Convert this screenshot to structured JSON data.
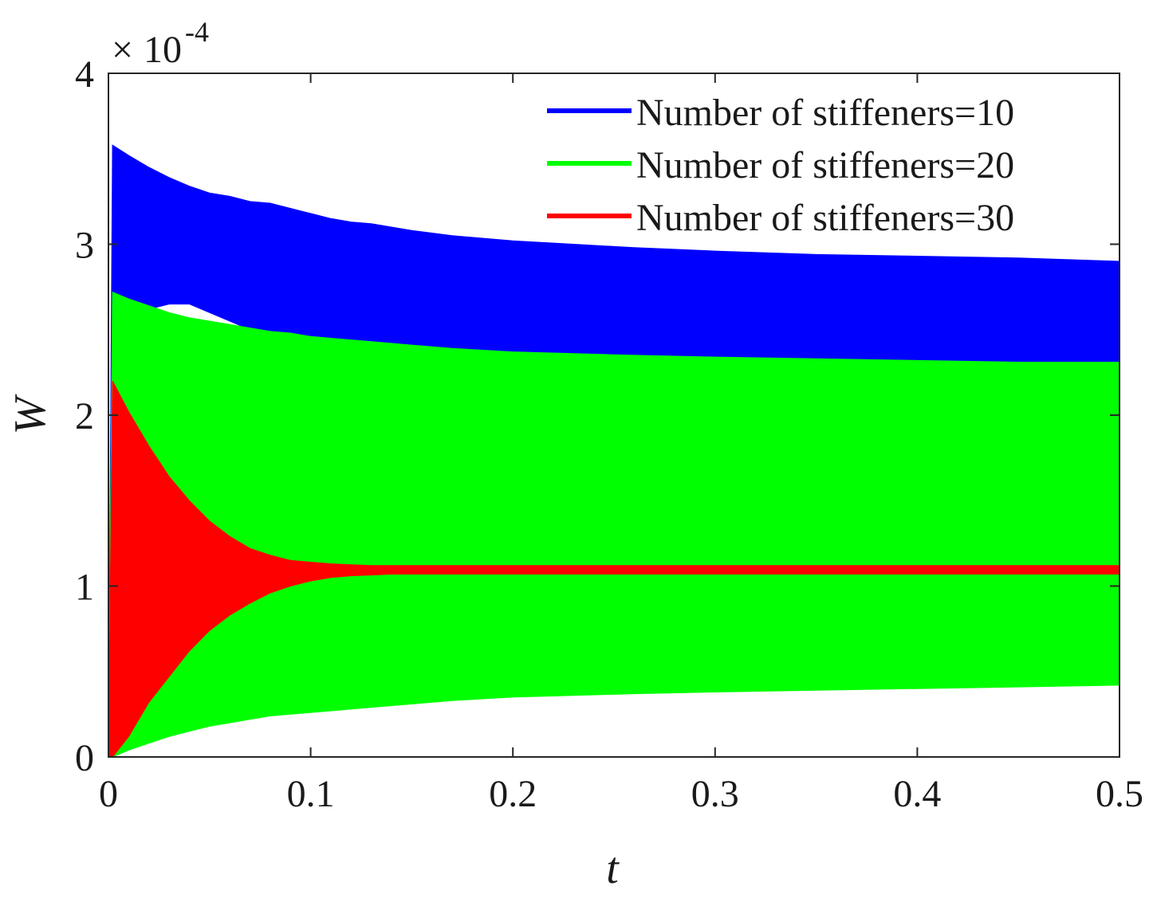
{
  "chart_data": {
    "type": "area",
    "title": "",
    "xlabel": "t",
    "ylabel": "W",
    "xlim": [
      0,
      0.5
    ],
    "ylim": [
      0,
      4
    ],
    "y_scale_factor": {
      "base": "10",
      "exponent": "-4"
    },
    "x_ticks": [
      0,
      0.1,
      0.2,
      0.3,
      0.4,
      0.5
    ],
    "x_tick_labels": [
      "0",
      "0.1",
      "0.2",
      "0.3",
      "0.4",
      "0.5"
    ],
    "y_ticks": [
      0,
      1,
      2,
      3,
      4
    ],
    "y_tick_labels": [
      "0",
      "1",
      "2",
      "3",
      "4"
    ],
    "legend_position": "top-right",
    "grid": false,
    "series": [
      {
        "name": "Number of stiffeners=10",
        "color": "#0000ff",
        "t": [
          0,
          0.002,
          0.01,
          0.02,
          0.03,
          0.04,
          0.05,
          0.06,
          0.07,
          0.08,
          0.09,
          0.1,
          0.11,
          0.12,
          0.13,
          0.14,
          0.15,
          0.17,
          0.2,
          0.23,
          0.26,
          0.3,
          0.35,
          0.4,
          0.45,
          0.5
        ],
        "upper": [
          0,
          3.58,
          3.52,
          3.45,
          3.39,
          3.34,
          3.3,
          3.28,
          3.25,
          3.24,
          3.21,
          3.18,
          3.15,
          3.13,
          3.12,
          3.1,
          3.08,
          3.05,
          3.02,
          3.0,
          2.98,
          2.96,
          2.94,
          2.93,
          2.92,
          2.9
        ],
        "lower": [
          0,
          2.4,
          2.55,
          2.62,
          2.65,
          2.65,
          2.6,
          2.55,
          2.5,
          2.45,
          2.45,
          2.42,
          2.41,
          2.4,
          2.39,
          2.38,
          2.37,
          2.36,
          2.35,
          2.34,
          2.33,
          2.32,
          2.31,
          2.31,
          2.3,
          2.3
        ]
      },
      {
        "name": "Number of stiffeners=20",
        "color": "#00ff00",
        "t": [
          0,
          0.002,
          0.01,
          0.02,
          0.03,
          0.04,
          0.05,
          0.06,
          0.07,
          0.08,
          0.09,
          0.1,
          0.11,
          0.12,
          0.13,
          0.14,
          0.15,
          0.17,
          0.2,
          0.23,
          0.26,
          0.3,
          0.35,
          0.4,
          0.45,
          0.5
        ],
        "upper": [
          0,
          2.72,
          2.68,
          2.64,
          2.6,
          2.57,
          2.55,
          2.53,
          2.51,
          2.49,
          2.48,
          2.46,
          2.45,
          2.44,
          2.43,
          2.42,
          2.41,
          2.39,
          2.37,
          2.36,
          2.35,
          2.34,
          2.33,
          2.32,
          2.31,
          2.31
        ],
        "lower": [
          0,
          0.0,
          0.04,
          0.08,
          0.12,
          0.15,
          0.18,
          0.2,
          0.22,
          0.24,
          0.25,
          0.26,
          0.27,
          0.28,
          0.29,
          0.3,
          0.31,
          0.33,
          0.35,
          0.36,
          0.37,
          0.38,
          0.39,
          0.4,
          0.41,
          0.42
        ]
      },
      {
        "name": "Number of stiffeners=30",
        "color": "#ff0000",
        "t": [
          0,
          0.002,
          0.01,
          0.02,
          0.03,
          0.04,
          0.05,
          0.06,
          0.07,
          0.08,
          0.09,
          0.1,
          0.11,
          0.12,
          0.13,
          0.14,
          0.15,
          0.16,
          0.17,
          0.2,
          0.25,
          0.3,
          0.35,
          0.4,
          0.45,
          0.5
        ],
        "upper": [
          0,
          2.2,
          2.02,
          1.82,
          1.64,
          1.5,
          1.38,
          1.29,
          1.22,
          1.18,
          1.15,
          1.14,
          1.13,
          1.125,
          1.12,
          1.12,
          1.12,
          1.12,
          1.12,
          1.12,
          1.12,
          1.12,
          1.12,
          1.12,
          1.12,
          1.12
        ],
        "lower": [
          0,
          0.0,
          0.12,
          0.32,
          0.47,
          0.62,
          0.74,
          0.83,
          0.9,
          0.96,
          1.0,
          1.03,
          1.05,
          1.06,
          1.065,
          1.07,
          1.07,
          1.07,
          1.07,
          1.07,
          1.07,
          1.07,
          1.07,
          1.07,
          1.07,
          1.07
        ]
      }
    ]
  }
}
